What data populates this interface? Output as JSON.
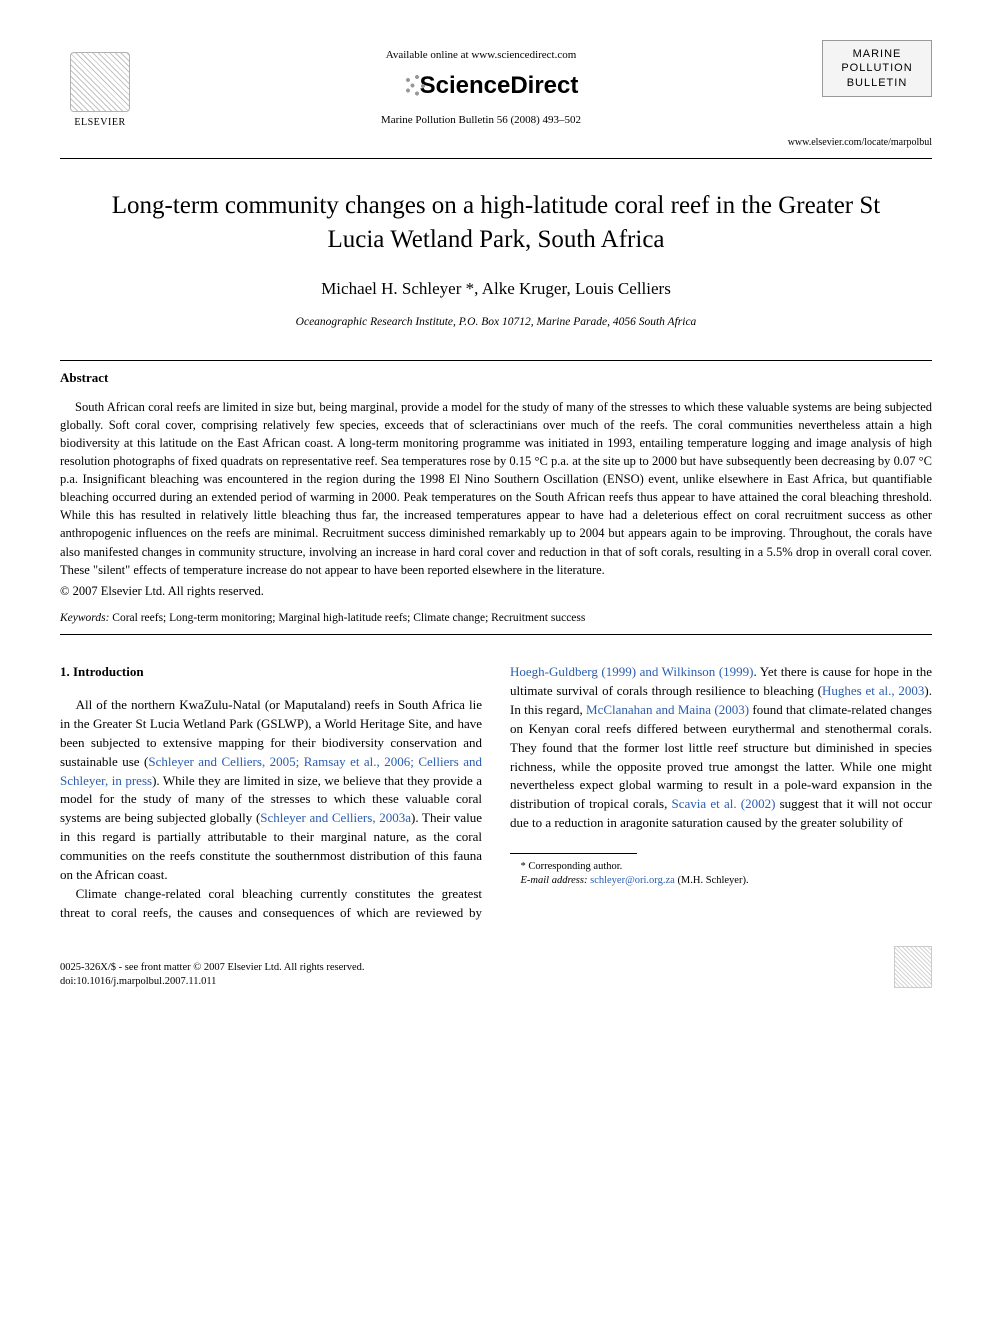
{
  "header": {
    "elsevier_label": "ELSEVIER",
    "available_online": "Available online at www.sciencedirect.com",
    "sciencedirect": "ScienceDirect",
    "journal_ref": "Marine Pollution Bulletin 56 (2008) 493–502",
    "journal_logo_lines": [
      "MARINE",
      "POLLUTION",
      "BULLETIN"
    ],
    "journal_url": "www.elsevier.com/locate/marpolbul"
  },
  "title": "Long-term community changes on a high-latitude coral reef in the Greater St Lucia Wetland Park, South Africa",
  "authors": "Michael H. Schleyer *, Alke Kruger, Louis Celliers",
  "affiliation": "Oceanographic Research Institute, P.O. Box 10712, Marine Parade, 4056 South Africa",
  "abstract": {
    "heading": "Abstract",
    "text": "South African coral reefs are limited in size but, being marginal, provide a model for the study of many of the stresses to which these valuable systems are being subjected globally. Soft coral cover, comprising relatively few species, exceeds that of scleractinians over much of the reefs. The coral communities nevertheless attain a high biodiversity at this latitude on the East African coast. A long-term monitoring programme was initiated in 1993, entailing temperature logging and image analysis of high resolution photographs of fixed quadrats on representative reef. Sea temperatures rose by 0.15 °C p.a. at the site up to 2000 but have subsequently been decreasing by 0.07 °C p.a. Insignificant bleaching was encountered in the region during the 1998 El Nino Southern Oscillation (ENSO) event, unlike elsewhere in East Africa, but quantifiable bleaching occurred during an extended period of warming in 2000. Peak temperatures on the South African reefs thus appear to have attained the coral bleaching threshold. While this has resulted in relatively little bleaching thus far, the increased temperatures appear to have had a deleterious effect on coral recruitment success as other anthropogenic influences on the reefs are minimal. Recruitment success diminished remarkably up to 2004 but appears again to be improving. Throughout, the corals have also manifested changes in community structure, involving an increase in hard coral cover and reduction in that of soft corals, resulting in a 5.5% drop in overall coral cover. These \"silent\" effects of temperature increase do not appear to have been reported elsewhere in the literature.",
    "copyright": "© 2007 Elsevier Ltd. All rights reserved."
  },
  "keywords": {
    "label": "Keywords:",
    "text": " Coral reefs; Long-term monitoring; Marginal high-latitude reefs; Climate change; Recruitment success"
  },
  "intro": {
    "heading": "1. Introduction",
    "para1_pre": "All of the northern KwaZulu-Natal (or Maputaland) reefs in South Africa lie in the Greater St Lucia Wetland Park (GSLWP), a World Heritage Site, and have been subjected to extensive mapping for their biodiversity conservation and sustainable use (",
    "cite1": "Schleyer and Celliers, 2005; Ramsay et al., 2006; Celliers and Schleyer, in press",
    "para1_mid": "). While they are limited in size, we believe that they provide a model for the study of many of the stresses to which these valuable coral systems are being subjected globally (",
    "cite2": "Schleyer and Celliers, 2003a",
    "para1_post": "). Their value in this regard is partially attributable to their marginal nature, as the coral communities on the reefs constitute the southernmost distribution of this fauna on the African coast.",
    "para2_pre": "Climate change-related coral bleaching currently constitutes the greatest threat to coral reefs, the causes and consequences of which are reviewed by ",
    "cite3": "Hoegh-Guldberg (1999) and Wilkinson (1999)",
    "para2_mid1": ". Yet there is cause for hope in the ultimate survival of corals through resilience to bleaching (",
    "cite4": "Hughes et al., 2003",
    "para2_mid2": "). In this regard, ",
    "cite5": "McClanahan and Maina (2003)",
    "para2_mid3": " found that climate-related changes on Kenyan coral reefs differed between eurythermal and stenothermal corals. They found that the former lost little reef structure but diminished in species richness, while the opposite proved true amongst the latter. While one might nevertheless expect global warming to result in a pole-ward expansion in the distribution of tropical corals, ",
    "cite6": "Scavia et al. (2002)",
    "para2_post": " suggest that it will not occur due to a reduction in aragonite saturation caused by the greater solubility of"
  },
  "footnote": {
    "corresponding": "* Corresponding author.",
    "email_label": "E-mail address:",
    "email": " schleyer@ori.org.za ",
    "email_post": "(M.H. Schleyer)."
  },
  "footer": {
    "line1": "0025-326X/$ - see front matter © 2007 Elsevier Ltd. All rights reserved.",
    "line2": "doi:10.1016/j.marpolbul.2007.11.011"
  },
  "colors": {
    "citation": "#2a5db0",
    "text": "#000000",
    "background": "#ffffff"
  },
  "typography": {
    "title_fontsize_pt": 19,
    "authors_fontsize_pt": 13,
    "body_fontsize_pt": 10,
    "abstract_fontsize_pt": 9.5,
    "footnote_fontsize_pt": 8
  }
}
